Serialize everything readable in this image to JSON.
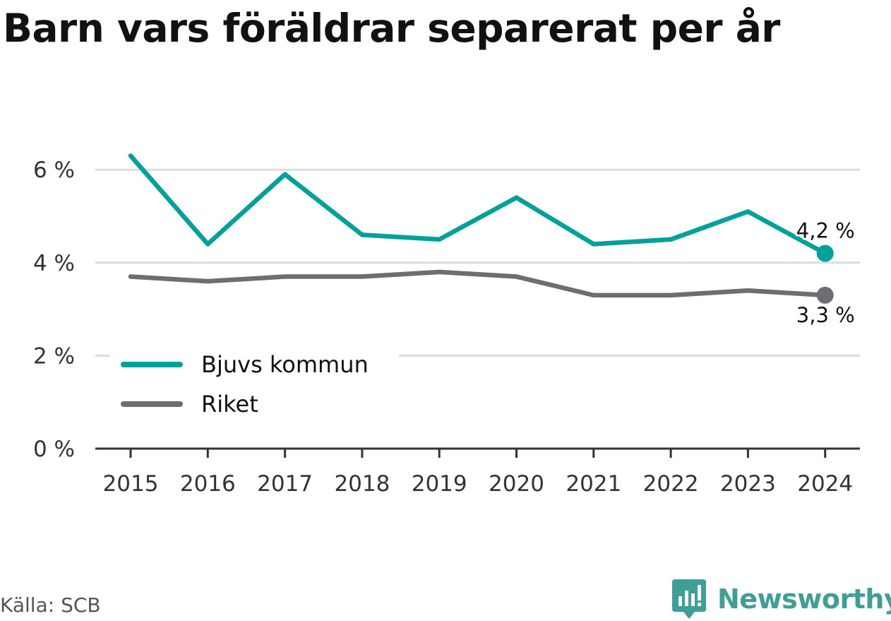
{
  "title": "Barn vars föräldrar separerat per år",
  "source": "Källa: SCB",
  "brand": "Newsworthy",
  "chart_data": {
    "type": "line",
    "title": "Barn vars föräldrar separerat per år",
    "x": [
      "2015",
      "2016",
      "2017",
      "2018",
      "2019",
      "2020",
      "2021",
      "2022",
      "2023",
      "2024"
    ],
    "series": [
      {
        "name": "Bjuvs kommun",
        "color": "#00a19a",
        "values": [
          6.3,
          4.4,
          5.9,
          4.6,
          4.5,
          5.4,
          4.4,
          4.5,
          5.1,
          4.2
        ],
        "end_label": "4,2 %"
      },
      {
        "name": "Riket",
        "color": "#6e6d73",
        "values": [
          3.7,
          3.6,
          3.7,
          3.7,
          3.8,
          3.7,
          3.3,
          3.3,
          3.4,
          3.3
        ],
        "end_label": "3,3 %"
      }
    ],
    "yticks": [
      0,
      2,
      4,
      6
    ],
    "ytick_labels": [
      "0 %",
      "2 %",
      "4 %",
      "6 %"
    ],
    "ylim": [
      0,
      6.4
    ],
    "grid": true,
    "legend": "bottom-left",
    "xlabel": "",
    "ylabel": ""
  }
}
